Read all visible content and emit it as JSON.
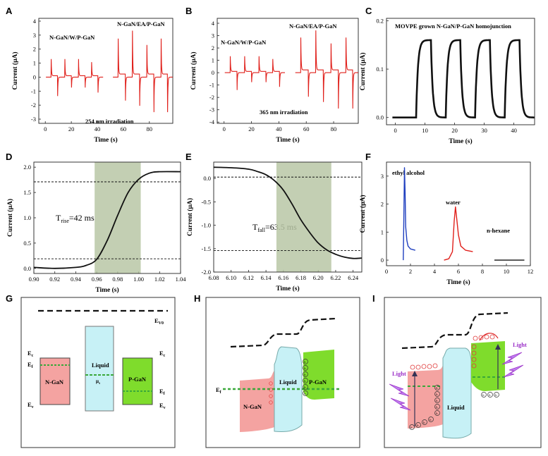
{
  "colors": {
    "red": "#e0201b",
    "blue": "#1f3fbf",
    "black": "#111111",
    "shade": "#b8c7a6",
    "ngan": "#f4a3a1",
    "liquid": "#c7f1f6",
    "pgan": "#7fdc2c",
    "fermi": "#3aa83a",
    "purple": "#9b30c8"
  },
  "panels": {
    "A": {
      "label": "A",
      "annot_left": "N-GaN/W/P-GaN",
      "annot_right": "N-GaN/EA/P-GaN",
      "note": "254 nm irradiation"
    },
    "B": {
      "label": "B",
      "annot_left": "N-GaN/W/P-GaN",
      "annot_right": "N-GaN/EA/P-GaN",
      "note": "365 nm irradiation"
    },
    "C": {
      "label": "C",
      "annot": "MOVPE grown N-GaN/P-GaN homojunction"
    },
    "D": {
      "label": "D",
      "annot_main": "T",
      "annot_sub": "rise",
      "annot_tail": "=42 ms"
    },
    "E": {
      "label": "E",
      "annot_main": "T",
      "annot_sub": "fall",
      "annot_tail": "=63.5 ms"
    },
    "F": {
      "label": "F",
      "series_labels": [
        "ethyl alcohol",
        "water",
        "n-hexane"
      ]
    },
    "G": {
      "label": "G",
      "evac_main": "E",
      "evac_sub": "V0",
      "ec": "E",
      "ec_sub": "c",
      "ef": "E",
      "ef_sub": "f",
      "ev": "E",
      "ev_sub": "v",
      "ngan": "N-GaN",
      "liquid": "Liquid",
      "mu": "μ",
      "mu_sub": "s",
      "pgan": "P-GaN"
    },
    "H": {
      "label": "H",
      "ef": "E",
      "ef_sub": "f",
      "ngan": "N-GaN",
      "liquid": "Liquid",
      "pgan": "P-GaN",
      "h": "h",
      "e": "e"
    },
    "I": {
      "label": "I",
      "light": "Light",
      "liquid": "Liquid",
      "h": "h",
      "e": "e"
    }
  },
  "chart_data": [
    {
      "panel": "A",
      "type": "line",
      "xlabel": "Time (s)",
      "ylabel": "Current (μA)",
      "xlim": [
        -5,
        98
      ],
      "ylim": [
        -3.3,
        4.2
      ],
      "xticks": [
        0,
        20,
        40,
        60,
        80
      ],
      "yticks": [
        -3,
        -2,
        -1,
        0,
        1,
        2,
        3,
        4
      ],
      "series": [
        {
          "name": "N-GaN/W/P-GaN",
          "pulses_on": [
            4.5,
            15,
            25.5,
            35.5
          ],
          "pulses_off": [
            9.5,
            20,
            30.5,
            40.5
          ],
          "peak_on": 1.45,
          "peak_off": -1.35
        },
        {
          "name": "N-GaN/EA/P-GaN",
          "pulses_on": [
            56,
            67,
            78,
            89
          ],
          "pulses_off": [
            61.5,
            72.5,
            83.5,
            94
          ],
          "peak_on": 3.1,
          "peak_off": -2.5
        }
      ]
    },
    {
      "panel": "B",
      "type": "line",
      "xlabel": "Time (s)",
      "ylabel": "Current (μA)",
      "xlim": [
        -5,
        98
      ],
      "ylim": [
        -4.1,
        4.4
      ],
      "xticks": [
        0,
        20,
        40,
        60,
        80
      ],
      "yticks": [
        -4,
        -3,
        -2,
        -1,
        0,
        1,
        2,
        3,
        4
      ],
      "series": [
        {
          "name": "N-GaN/W/P-GaN",
          "pulses_on": [
            4.5,
            15,
            25.5,
            35.5
          ],
          "pulses_off": [
            9.5,
            20,
            30.5,
            40.5
          ],
          "peak_on": 1.5,
          "peak_off": -1.4
        },
        {
          "name": "N-GaN/EA/P-GaN",
          "pulses_on": [
            56,
            67,
            78,
            89
          ],
          "pulses_off": [
            61.5,
            72.5,
            83.5,
            94
          ],
          "peak_on": 3.2,
          "peak_off": -2.9
        }
      ]
    },
    {
      "panel": "C",
      "type": "line",
      "xlabel": "Time (s)",
      "ylabel": "Current (μA)",
      "xlim": [
        -3,
        47
      ],
      "ylim": [
        -0.015,
        0.205
      ],
      "xticks": [
        0,
        10,
        20,
        30,
        40
      ],
      "yticks": [
        0.0,
        0.1,
        0.2
      ],
      "ytick_labels": [
        "0.0",
        "0.1",
        "0.2"
      ],
      "on_intervals": [
        [
          7,
          12
        ],
        [
          17,
          22
        ],
        [
          27,
          32
        ],
        [
          37,
          42
        ]
      ],
      "on_level": 0.16,
      "off_level": 0.0
    },
    {
      "panel": "D",
      "type": "line",
      "xlabel": "Time (s)",
      "ylabel": "Current (μA)",
      "xlim": [
        0.9,
        1.04
      ],
      "ylim": [
        -0.1,
        2.1
      ],
      "xticks": [
        0.9,
        0.92,
        0.94,
        0.96,
        0.98,
        1.0,
        1.02,
        1.04
      ],
      "xtick_labels": [
        "0.90",
        "0.92",
        "0.94",
        "0.96",
        "0.98",
        "1.00",
        "1.02",
        "1.04"
      ],
      "yticks": [
        0.0,
        0.5,
        1.0,
        1.5,
        2.0
      ],
      "ytick_labels": [
        "0.0",
        "0.5",
        "1.0",
        "1.5",
        "2.0"
      ],
      "shaded": [
        0.958,
        1.002
      ],
      "dashed_levels": [
        0.19,
        1.71
      ],
      "x": [
        0.9,
        0.92,
        0.94,
        0.95,
        0.96,
        0.97,
        0.98,
        0.99,
        1.0,
        1.01,
        1.02,
        1.04
      ],
      "y": [
        0.02,
        0.0,
        0.02,
        0.06,
        0.18,
        0.55,
        1.05,
        1.5,
        1.76,
        1.88,
        1.91,
        1.91
      ]
    },
    {
      "panel": "E",
      "type": "line",
      "xlabel": "Time (s)",
      "ylabel": "Current (μA)",
      "xlim": [
        6.08,
        6.25
      ],
      "ylim": [
        -2.0,
        0.35
      ],
      "xticks": [
        6.08,
        6.1,
        6.12,
        6.14,
        6.16,
        6.18,
        6.2,
        6.22,
        6.24
      ],
      "xtick_labels": [
        "6.08",
        "6.10",
        "6.12",
        "6.14",
        "6.16",
        "6.18",
        "6.20",
        "6.22",
        "6.24"
      ],
      "yticks": [
        0.0,
        -0.5,
        -1.0,
        -1.5,
        -2.0
      ],
      "ytick_labels": [
        "0.0",
        "-0.5",
        "-1.0",
        "-1.5",
        "-2.0"
      ],
      "shaded": [
        6.152,
        6.215
      ],
      "dashed_levels": [
        0.03,
        -1.54
      ],
      "x": [
        6.08,
        6.1,
        6.12,
        6.13,
        6.14,
        6.15,
        6.16,
        6.17,
        6.18,
        6.19,
        6.2,
        6.21,
        6.22,
        6.23,
        6.24,
        6.25
      ],
      "y": [
        0.24,
        0.23,
        0.2,
        0.15,
        0.08,
        -0.05,
        -0.25,
        -0.55,
        -0.88,
        -1.15,
        -1.38,
        -1.53,
        -1.62,
        -1.68,
        -1.71,
        -1.7
      ]
    },
    {
      "panel": "F",
      "type": "line",
      "xlabel": "Time (s)",
      "ylabel": "Current (μA)",
      "xlim": [
        0,
        12
      ],
      "ylim": [
        -0.2,
        3.5
      ],
      "xticks": [
        0,
        2,
        4,
        6,
        8,
        10,
        12
      ],
      "yticks": [
        0,
        1,
        2,
        3
      ],
      "series": [
        {
          "name": "ethyl alcohol",
          "x": [
            1.4,
            1.45,
            1.5,
            1.55,
            1.6,
            1.7,
            1.8,
            2.0,
            2.4
          ],
          "y": [
            0.0,
            1.5,
            3.3,
            2.4,
            1.2,
            0.7,
            0.5,
            0.4,
            0.35
          ]
        },
        {
          "name": "water",
          "x": [
            4.8,
            5.2,
            5.5,
            5.65,
            5.75,
            5.85,
            6.0,
            6.2,
            6.6,
            7.2
          ],
          "y": [
            0.0,
            0.05,
            0.3,
            1.4,
            1.9,
            1.5,
            0.9,
            0.5,
            0.35,
            0.3
          ]
        },
        {
          "name": "n-hexane",
          "x": [
            9.0,
            11.5
          ],
          "y": [
            0.0,
            0.0
          ]
        }
      ]
    }
  ]
}
